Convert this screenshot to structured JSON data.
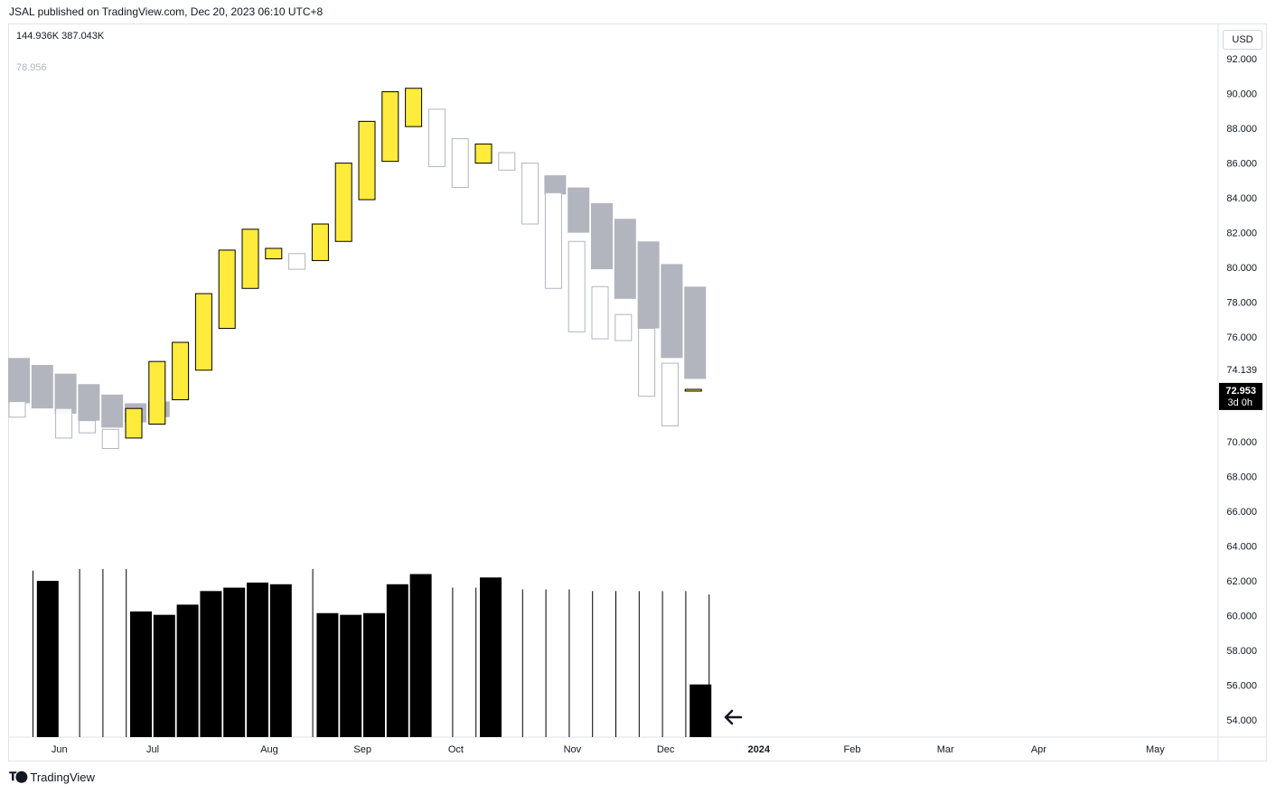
{
  "header": {
    "text": "JSAL published on TradingView.com, Dec 20, 2023 06:10 UTC+8"
  },
  "legend": {
    "line1": "144.936K  387.043K",
    "line2": "78.956"
  },
  "currency": "USD",
  "footer": {
    "logo_text": "TradingView",
    "logo_icon": "tradingview-logo-icon"
  },
  "colors": {
    "yellow": "#ffeb3b",
    "gray": "#b2b5be",
    "outline": "#000000",
    "volume": "#000000",
    "last_price_bg": "#000000"
  },
  "chart_data": {
    "type": "candlestick",
    "timeframe": "weekly",
    "yaxis": {
      "ticks": [
        "92.000",
        "90.000",
        "88.000",
        "86.000",
        "84.000",
        "82.000",
        "80.000",
        "78.000",
        "76.000",
        "74.000",
        "72.000",
        "70.000",
        "68.000",
        "66.000",
        "64.000",
        "62.000",
        "60.000",
        "58.000",
        "56.000",
        "54.000"
      ],
      "tick_values": [
        92,
        90,
        88,
        86,
        84,
        82,
        80,
        78,
        76,
        74,
        72,
        70,
        68,
        66,
        64,
        62,
        60,
        58,
        56,
        54
      ],
      "ylim": [
        53.0,
        93.0
      ]
    },
    "xaxis": {
      "labels": [
        "Jun",
        "Jul",
        "Aug",
        "Sep",
        "Oct",
        "Nov",
        "Dec",
        "2024",
        "Feb",
        "Mar",
        "Apr",
        "May"
      ],
      "label_bar_index": [
        1,
        5,
        10,
        14,
        18,
        23,
        27,
        31,
        35,
        39,
        43,
        48
      ]
    },
    "price_labels": [
      {
        "text": "74.139",
        "value": 74.139,
        "style": "plain"
      },
      {
        "text": "72.953",
        "value": 72.953,
        "style": "highlight",
        "sub": "3d 0h"
      }
    ],
    "gray_bars": [
      {
        "i": 0,
        "open": 74.8,
        "close": 72.2
      },
      {
        "i": 1,
        "open": 74.4,
        "close": 71.9
      },
      {
        "i": 2,
        "open": 73.9,
        "close": 71.6
      },
      {
        "i": 3,
        "open": 73.3,
        "close": 71.2
      },
      {
        "i": 4,
        "open": 72.7,
        "close": 70.8
      },
      {
        "i": 5,
        "open": 72.2,
        "close": 71.1
      },
      {
        "i": 6,
        "open": 72.3,
        "close": 71.4
      },
      {
        "i": 23,
        "open": 85.3,
        "close": 84.2
      },
      {
        "i": 24,
        "open": 84.6,
        "close": 82.0
      },
      {
        "i": 25,
        "open": 83.7,
        "close": 79.9
      },
      {
        "i": 26,
        "open": 82.8,
        "close": 78.2
      },
      {
        "i": 27,
        "open": 81.5,
        "close": 76.5
      },
      {
        "i": 28,
        "open": 80.2,
        "close": 74.8
      },
      {
        "i": 29,
        "open": 78.9,
        "close": 73.6
      }
    ],
    "candles": [
      {
        "i": 0,
        "open": 72.3,
        "close": 71.4,
        "color": "hollow"
      },
      {
        "i": 2,
        "open": 71.9,
        "close": 70.2,
        "color": "hollow"
      },
      {
        "i": 3,
        "open": 71.2,
        "close": 70.5,
        "color": "hollow"
      },
      {
        "i": 4,
        "open": 70.7,
        "close": 69.6,
        "color": "hollow"
      },
      {
        "i": 5,
        "open": 70.2,
        "close": 71.9,
        "color": "yellow"
      },
      {
        "i": 6,
        "open": 71.0,
        "close": 74.6,
        "color": "yellow"
      },
      {
        "i": 7,
        "open": 72.4,
        "close": 75.7,
        "color": "yellow"
      },
      {
        "i": 8,
        "open": 74.1,
        "close": 78.5,
        "color": "yellow"
      },
      {
        "i": 9,
        "open": 76.5,
        "close": 81.0,
        "color": "yellow"
      },
      {
        "i": 10,
        "open": 78.8,
        "close": 82.2,
        "color": "yellow"
      },
      {
        "i": 11,
        "open": 80.5,
        "close": 81.1,
        "color": "yellow"
      },
      {
        "i": 12,
        "open": 80.8,
        "close": 79.9,
        "color": "hollow"
      },
      {
        "i": 13,
        "open": 80.4,
        "close": 82.5,
        "color": "yellow"
      },
      {
        "i": 14,
        "open": 81.5,
        "close": 86.0,
        "color": "yellow"
      },
      {
        "i": 15,
        "open": 83.9,
        "close": 88.4,
        "color": "yellow"
      },
      {
        "i": 16,
        "open": 86.1,
        "close": 90.1,
        "color": "yellow"
      },
      {
        "i": 17,
        "open": 88.1,
        "close": 90.3,
        "color": "yellow"
      },
      {
        "i": 18,
        "open": 89.1,
        "close": 85.8,
        "color": "hollow"
      },
      {
        "i": 19,
        "open": 87.4,
        "close": 84.6,
        "color": "hollow"
      },
      {
        "i": 20,
        "open": 87.1,
        "close": 86.0,
        "color": "yellow"
      },
      {
        "i": 21,
        "open": 86.6,
        "close": 85.6,
        "color": "hollow"
      },
      {
        "i": 22,
        "open": 86.0,
        "close": 82.5,
        "color": "hollow"
      },
      {
        "i": 23,
        "open": 84.3,
        "close": 78.8,
        "color": "hollow"
      },
      {
        "i": 24,
        "open": 81.5,
        "close": 76.3,
        "color": "hollow"
      },
      {
        "i": 25,
        "open": 78.9,
        "close": 75.9,
        "color": "hollow"
      },
      {
        "i": 26,
        "open": 77.3,
        "close": 75.8,
        "color": "hollow"
      },
      {
        "i": 27,
        "open": 76.5,
        "close": 72.6,
        "color": "hollow"
      },
      {
        "i": 28,
        "open": 74.5,
        "close": 70.9,
        "color": "hollow"
      },
      {
        "i": 29,
        "open": 72.9,
        "close": 73.0,
        "color": "yellow"
      }
    ],
    "volume": {
      "note": "relative heights 0-1 of the volume pane (pane top = 1)",
      "bars": [
        {
          "i": 0,
          "v": 0.98,
          "bar": false
        },
        {
          "i": 1,
          "v": 0.92,
          "bar": true
        },
        {
          "i": 2,
          "v": 0.99,
          "bar": false
        },
        {
          "i": 3,
          "v": 0.99,
          "bar": false
        },
        {
          "i": 4,
          "v": 0.99,
          "bar": false
        },
        {
          "i": 5,
          "v": 0.74,
          "bar": true
        },
        {
          "i": 6,
          "v": 0.72,
          "bar": true
        },
        {
          "i": 7,
          "v": 0.78,
          "bar": true
        },
        {
          "i": 8,
          "v": 0.86,
          "bar": true
        },
        {
          "i": 9,
          "v": 0.88,
          "bar": true
        },
        {
          "i": 10,
          "v": 0.91,
          "bar": true
        },
        {
          "i": 11,
          "v": 0.9,
          "bar": true
        },
        {
          "i": 12,
          "v": 0.99,
          "bar": false
        },
        {
          "i": 13,
          "v": 0.73,
          "bar": true
        },
        {
          "i": 14,
          "v": 0.72,
          "bar": true
        },
        {
          "i": 15,
          "v": 0.73,
          "bar": true
        },
        {
          "i": 16,
          "v": 0.9,
          "bar": true
        },
        {
          "i": 17,
          "v": 0.96,
          "bar": true
        },
        {
          "i": 18,
          "v": 0.88,
          "bar": false
        },
        {
          "i": 19,
          "v": 0.88,
          "bar": false
        },
        {
          "i": 20,
          "v": 0.94,
          "bar": true
        },
        {
          "i": 21,
          "v": 0.87,
          "bar": false
        },
        {
          "i": 22,
          "v": 0.87,
          "bar": false
        },
        {
          "i": 23,
          "v": 0.87,
          "bar": false
        },
        {
          "i": 24,
          "v": 0.86,
          "bar": false
        },
        {
          "i": 25,
          "v": 0.86,
          "bar": false
        },
        {
          "i": 26,
          "v": 0.86,
          "bar": false
        },
        {
          "i": 27,
          "v": 0.86,
          "bar": false
        },
        {
          "i": 28,
          "v": 0.86,
          "bar": false
        },
        {
          "i": 29,
          "v": 0.84,
          "bar": false,
          "block": 0.31
        }
      ]
    },
    "scroll_arrow": "arrow-left-icon"
  }
}
